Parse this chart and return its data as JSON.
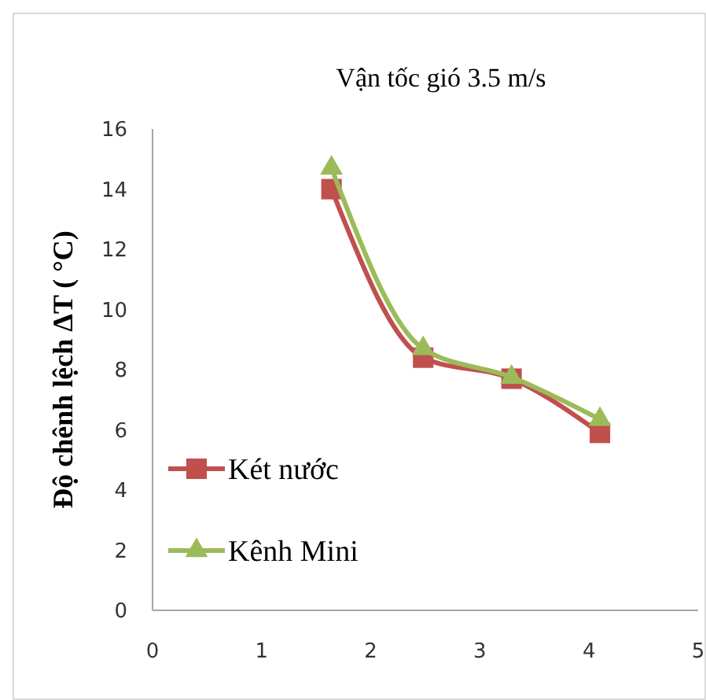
{
  "chart_data": {
    "type": "line",
    "title": "Vận tốc gió 3.5 m/s",
    "ylabel": "Độ chênh lệch ΔT ( °C)",
    "xlim": [
      0,
      5
    ],
    "xticks": [
      0,
      1,
      2,
      3,
      4,
      5
    ],
    "ylim": [
      0,
      16
    ],
    "yticks": [
      0,
      2,
      4,
      6,
      8,
      10,
      12,
      14,
      16
    ],
    "grid": false,
    "legend": "left",
    "line_style": "solid",
    "series": [
      {
        "name": "Két  nước",
        "color": "#c0504d",
        "marker": "square",
        "x": [
          1.64,
          2.48,
          3.29,
          4.1
        ],
        "values": [
          14.0,
          8.4,
          7.7,
          5.9
        ]
      },
      {
        "name": "Kênh Mini",
        "color": "#9bbb59",
        "marker": "triangle",
        "x": [
          1.64,
          2.48,
          3.29,
          4.1
        ],
        "values": [
          14.7,
          8.7,
          7.75,
          6.35
        ]
      }
    ]
  }
}
